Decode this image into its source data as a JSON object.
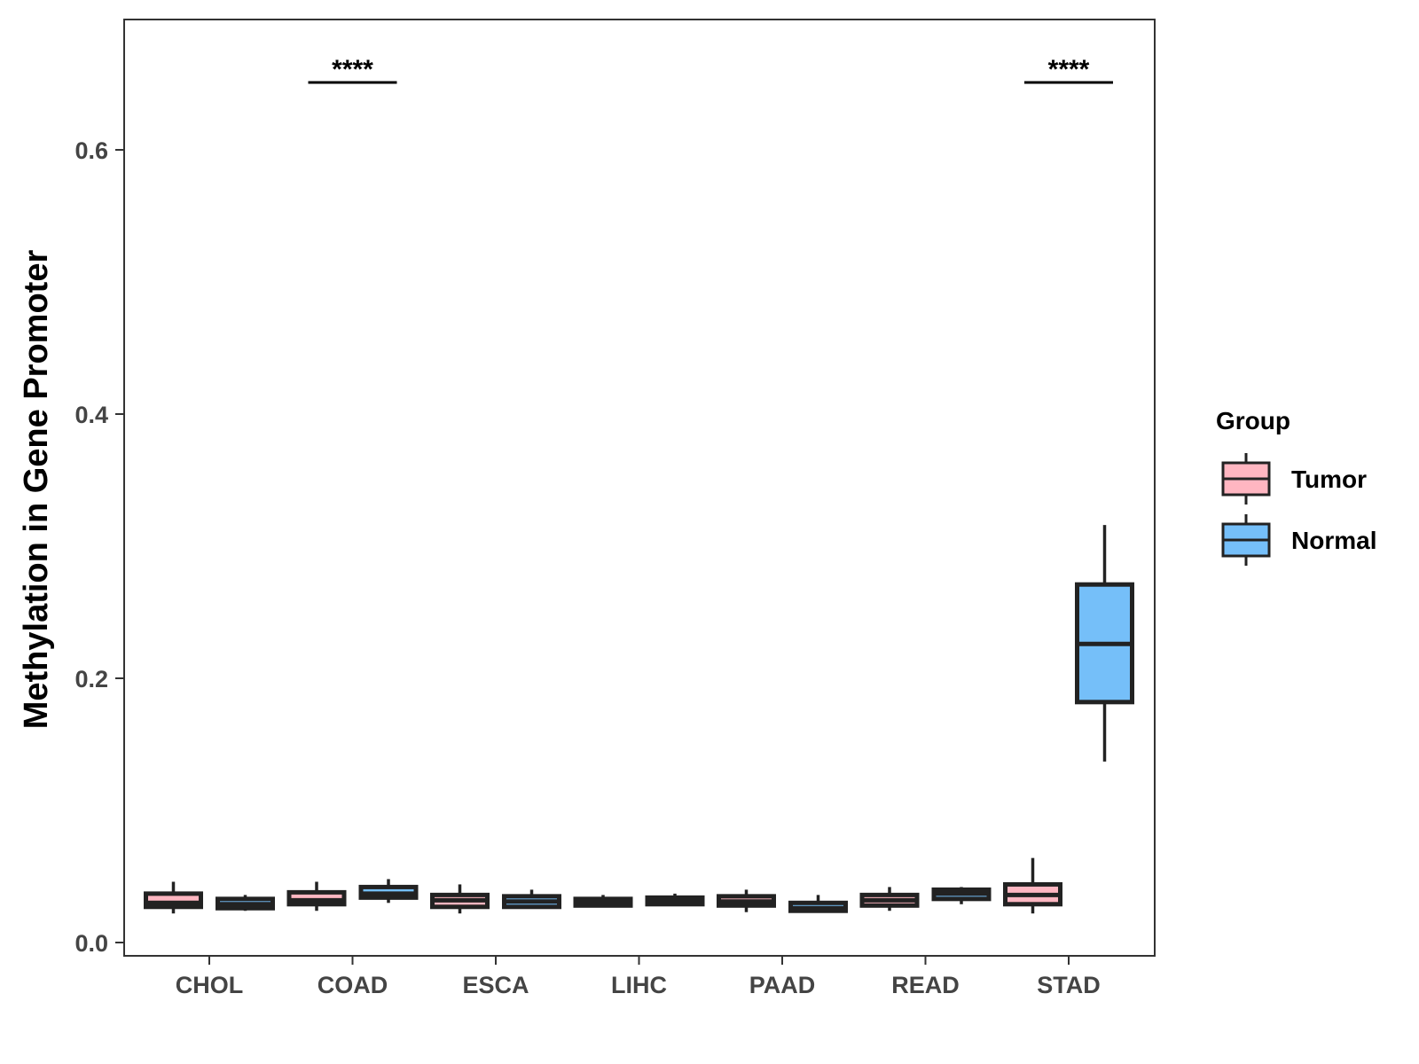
{
  "chart_data": {
    "type": "boxplot",
    "title": "",
    "xlabel": "",
    "ylabel": "Methylation in Gene Promoter",
    "ylim": [
      -0.01,
      0.7
    ],
    "yticks": [
      0.0,
      0.2,
      0.4,
      0.6
    ],
    "ytick_labels": [
      "0.0",
      "0.2",
      "0.4",
      "0.6"
    ],
    "categories": [
      "CHOL",
      "COAD",
      "ESCA",
      "LIHC",
      "PAAD",
      "READ",
      "STAD"
    ],
    "legend": {
      "title": "Group",
      "position": "right",
      "entries": [
        {
          "name": "Tumor",
          "color": "#FFB6C1"
        },
        {
          "name": "Normal",
          "color": "#75BFF9"
        }
      ]
    },
    "series": [
      {
        "name": "Tumor",
        "color": "#FFB6C1",
        "boxes": [
          {
            "category": "CHOL",
            "min": 0.022,
            "q1": 0.027,
            "median": 0.03,
            "q3": 0.037,
            "max": 0.046
          },
          {
            "category": "COAD",
            "min": 0.024,
            "q1": 0.029,
            "median": 0.032,
            "q3": 0.038,
            "max": 0.046
          },
          {
            "category": "ESCA",
            "min": 0.022,
            "q1": 0.027,
            "median": 0.032,
            "q3": 0.036,
            "max": 0.044
          },
          {
            "category": "LIHC",
            "min": 0.027,
            "q1": 0.028,
            "median": 0.03,
            "q3": 0.033,
            "max": 0.036
          },
          {
            "category": "PAAD",
            "min": 0.023,
            "q1": 0.028,
            "median": 0.031,
            "q3": 0.035,
            "max": 0.04
          },
          {
            "category": "READ",
            "min": 0.024,
            "q1": 0.028,
            "median": 0.032,
            "q3": 0.036,
            "max": 0.042
          },
          {
            "category": "STAD",
            "min": 0.022,
            "q1": 0.029,
            "median": 0.036,
            "q3": 0.044,
            "max": 0.064
          }
        ]
      },
      {
        "name": "Normal",
        "color": "#75BFF9",
        "boxes": [
          {
            "category": "CHOL",
            "min": 0.024,
            "q1": 0.026,
            "median": 0.029,
            "q3": 0.033,
            "max": 0.036
          },
          {
            "category": "COAD",
            "min": 0.03,
            "q1": 0.034,
            "median": 0.037,
            "q3": 0.042,
            "max": 0.048
          },
          {
            "category": "ESCA",
            "min": 0.026,
            "q1": 0.027,
            "median": 0.031,
            "q3": 0.035,
            "max": 0.04
          },
          {
            "category": "LIHC",
            "min": 0.028,
            "q1": 0.029,
            "median": 0.031,
            "q3": 0.034,
            "max": 0.037
          },
          {
            "category": "PAAD",
            "min": 0.023,
            "q1": 0.024,
            "median": 0.026,
            "q3": 0.03,
            "max": 0.036
          },
          {
            "category": "READ",
            "min": 0.029,
            "q1": 0.033,
            "median": 0.037,
            "q3": 0.04,
            "max": 0.042
          },
          {
            "category": "STAD",
            "min": 0.137,
            "q1": 0.182,
            "median": 0.226,
            "q3": 0.271,
            "max": 0.316
          }
        ]
      }
    ],
    "significance": [
      {
        "category": "COAD",
        "label": "****"
      },
      {
        "category": "STAD",
        "label": "****"
      }
    ]
  }
}
